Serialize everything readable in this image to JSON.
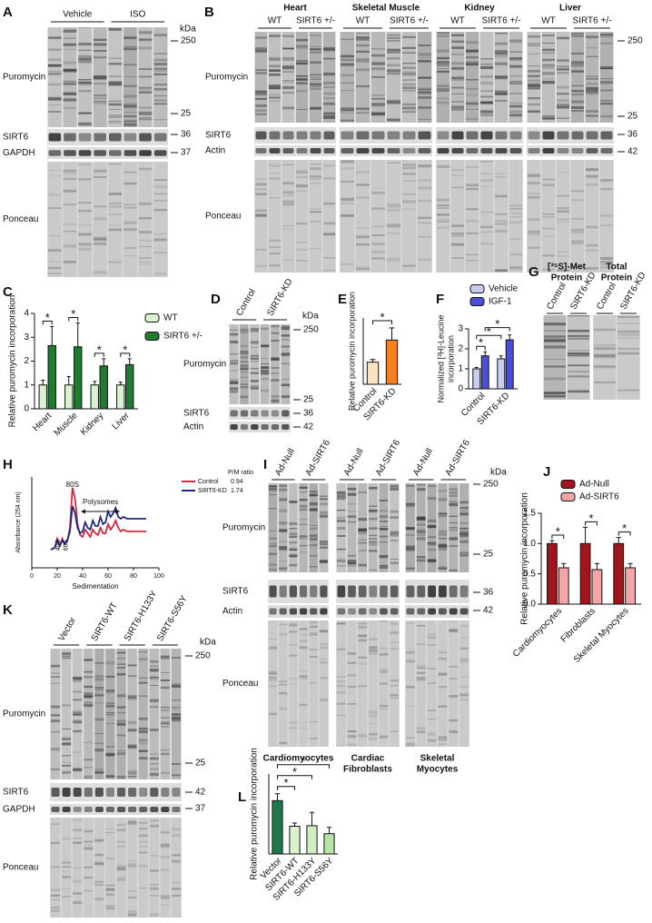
{
  "blots": [
    {
      "letter": "A",
      "unit": "kDa",
      "sections": [
        {
          "groups": [
            "Vehicle",
            "ISO"
          ]
        }
      ],
      "rows": [
        "Puromycin",
        "SIRT6",
        "GAPDH",
        "Ponceau"
      ],
      "markers": [
        250,
        25,
        36,
        37
      ]
    },
    {
      "letter": "B",
      "sections": [
        {
          "name": [
            "Heart"
          ],
          "groups": [
            "WT",
            "SIRT6 +/-"
          ]
        },
        {
          "name": [
            "Skeletal Muscle"
          ],
          "groups": [
            "WT",
            "SIRT6 +/-"
          ]
        },
        {
          "name": [
            "Kidney"
          ],
          "groups": [
            "WT",
            "SIRT6 +/-"
          ]
        },
        {
          "name": [
            "Liver"
          ],
          "groups": [
            "WT",
            "SIRT6 +/-"
          ]
        }
      ],
      "rows": [
        "Puromycin",
        "SIRT6",
        "Actin",
        "Ponceau"
      ],
      "markers": [
        250,
        25,
        36,
        42
      ]
    },
    {
      "letter": "D",
      "unit": "kDa",
      "sections": [
        {
          "groups": [
            "Control",
            "SIRT6-KD"
          ]
        }
      ],
      "rows": [
        "Puromycin",
        "SIRT6",
        "Actin"
      ],
      "markers": [
        250,
        25,
        36,
        42
      ]
    },
    {
      "letter": "G",
      "sections": [
        {
          "name": [
            "[³⁵S]-Met",
            "Protein"
          ],
          "groups": [
            "Control",
            "SIRT6-KD"
          ]
        },
        {
          "name": [
            "Total",
            "Protein"
          ],
          "groups": [
            "Control",
            "SIRT6-KD"
          ]
        }
      ]
    },
    {
      "letter": "I",
      "unit": "kDa",
      "sections": [
        {
          "name": [
            "Cardiomyocytes"
          ],
          "groups": [
            "Ad-Null",
            "Ad-SIRT6"
          ]
        },
        {
          "name": [
            "Cardiac",
            "Fibroblasts"
          ],
          "groups": [
            "Ad-Null",
            "Ad-SIRT6"
          ]
        },
        {
          "name": [
            "Skeletal",
            "Myocytes"
          ],
          "groups": [
            "Ad-Null",
            "Ad-SIRT6"
          ]
        }
      ],
      "rows": [
        "Puromycin",
        "SIRT6",
        "Actin",
        "Ponceau"
      ],
      "markers": [
        250,
        25,
        36,
        42
      ]
    },
    {
      "letter": "K",
      "unit": "kDa",
      "sections": [
        {
          "groups": [
            "Vector",
            "SIRT6-WT",
            "SIRT6-H133Y",
            "SIRT6-S56Y"
          ]
        }
      ],
      "rows": [
        "Puromycin",
        "SIRT6",
        "GAPDH",
        "Ponceau"
      ],
      "markers": [
        250,
        25,
        42,
        37
      ]
    }
  ],
  "chart_data": [
    {
      "letter": "C",
      "type": "bar",
      "ylabel": [
        "Relative puromycin incorporation"
      ],
      "categories": [
        "Heart",
        "Muscle",
        "Kidney",
        "Liver"
      ],
      "series": [
        {
          "name": "WT",
          "color": "#d9f2cf",
          "values": [
            1,
            1,
            1,
            1
          ],
          "errors": [
            0.2,
            0.35,
            0.15,
            0.12
          ]
        },
        {
          "name": "SIRT6 +/-",
          "color": "#1e7b2f",
          "values": [
            2.65,
            2.6,
            1.8,
            1.85
          ],
          "errors": [
            0.8,
            1.0,
            0.3,
            0.25
          ]
        }
      ],
      "ylim": [
        0,
        4
      ],
      "yticks": [
        0,
        1,
        2,
        3,
        4
      ],
      "significance": [
        "*",
        "*",
        "*",
        "*"
      ]
    },
    {
      "letter": "E",
      "type": "bar",
      "ylabel": [
        "Relative puromycin incorporation"
      ],
      "categories": [
        "Control",
        "SIRT6-KD"
      ],
      "values": [
        1.0,
        2.0
      ],
      "errors": [
        0.12,
        0.55
      ],
      "colors": [
        "#fde2c0",
        "#f7801e"
      ],
      "ylim": [
        0,
        3
      ],
      "significance": [
        "*"
      ]
    },
    {
      "letter": "F",
      "type": "bar",
      "ylabel": [
        "Normalized [³H]-Leucine",
        "incorporation"
      ],
      "categories": [
        "Control",
        "SIRT6-KD"
      ],
      "series": [
        {
          "name": "Vehicle",
          "color": "#c9cdf2",
          "values": [
            1.0,
            1.5
          ],
          "errors": [
            0.07,
            0.15
          ]
        },
        {
          "name": "IGF-1",
          "color": "#4a4fd8",
          "values": [
            1.65,
            2.45
          ],
          "errors": [
            0.2,
            0.25
          ]
        }
      ],
      "ylim": [
        0,
        3
      ],
      "yticks": [
        0,
        1,
        2,
        3
      ],
      "significance": [
        "*",
        "*",
        "*"
      ]
    },
    {
      "letter": "H",
      "type": "line",
      "xlabel": "Sedimentation",
      "ylabel": "Absorbance (254 nm)",
      "x": [
        15,
        18,
        20,
        22,
        24,
        26,
        28,
        30,
        32,
        34,
        36,
        38,
        40,
        42,
        44,
        46,
        48,
        50,
        52,
        54,
        56,
        58,
        60,
        62,
        64,
        66,
        68,
        70,
        72,
        75,
        80,
        85,
        90
      ],
      "series": [
        {
          "name": "Control",
          "color": "#d7263d",
          "pm_ratio": 0.94,
          "values": [
            0.1,
            0.11,
            0.16,
            0.12,
            0.16,
            0.13,
            0.15,
            0.22,
            0.44,
            0.38,
            0.24,
            0.18,
            0.17,
            0.21,
            0.19,
            0.17,
            0.21,
            0.19,
            0.18,
            0.22,
            0.19,
            0.19,
            0.24,
            0.21,
            0.23,
            0.26,
            0.22,
            0.2,
            0.21,
            0.2,
            0.2,
            0.2,
            0.2
          ]
        },
        {
          "name": "SIRT6-KD",
          "color": "#1f2a7a",
          "pm_ratio": 1.74,
          "values": [
            0.1,
            0.11,
            0.15,
            0.12,
            0.15,
            0.13,
            0.15,
            0.2,
            0.34,
            0.3,
            0.22,
            0.19,
            0.2,
            0.25,
            0.22,
            0.21,
            0.26,
            0.23,
            0.23,
            0.28,
            0.24,
            0.25,
            0.31,
            0.28,
            0.3,
            0.33,
            0.28,
            0.27,
            0.28,
            0.27,
            0.27,
            0.27,
            0.27
          ]
        }
      ],
      "legend_title": "P/M ratio",
      "annotations": [
        "80S",
        "40S",
        "60S",
        "Polysomes"
      ],
      "xlim": [
        0,
        100
      ],
      "xticks": [
        0,
        20,
        40,
        60,
        80,
        100
      ],
      "ylim": [
        0,
        0.5
      ]
    },
    {
      "letter": "J",
      "type": "bar",
      "ylabel": [
        "Relative puromycin incorporation"
      ],
      "categories": [
        "Cardiomyocytes",
        "Fibroblasts",
        "Skeletal Myocytes"
      ],
      "series": [
        {
          "name": "Ad-Null",
          "color": "#a3151c",
          "values": [
            1.0,
            1.0,
            1.0
          ],
          "errors": [
            0.05,
            0.27,
            0.1
          ]
        },
        {
          "name": "Ad-SIRT6",
          "color": "#f4a6a6",
          "values": [
            0.6,
            0.57,
            0.6
          ],
          "errors": [
            0.07,
            0.1,
            0.07
          ]
        }
      ],
      "ylim": [
        0,
        1.5
      ],
      "yticks": [
        {
          "value": 0,
          "label": "0.0"
        },
        0.5,
        {
          "value": 1,
          "label": "1.0"
        },
        1.5
      ],
      "significance": [
        "*",
        "*",
        "*"
      ]
    },
    {
      "letter": "L",
      "type": "bar",
      "ylabel": [
        "Relative puromycin incorporation"
      ],
      "categories": [
        "Vector",
        "SIRT6-WT",
        "SIRT6-H133Y",
        "SIRT6-S56Y"
      ],
      "values": [
        1.0,
        0.52,
        0.53,
        0.38
      ],
      "errors": [
        0.13,
        0.06,
        0.25,
        0.12
      ],
      "colors": [
        "#1d7a4c",
        "#dcf2cc",
        "#cdeebf",
        "#b6e3a6"
      ],
      "ylim": [
        0,
        1.5
      ],
      "significance": [
        "*",
        "*",
        "*"
      ]
    }
  ]
}
